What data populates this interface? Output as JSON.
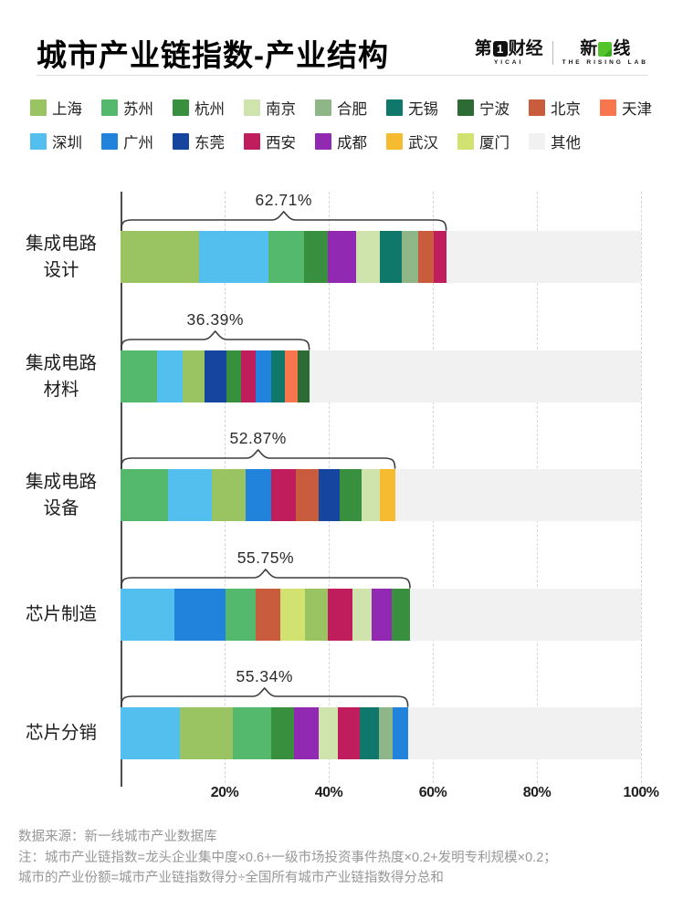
{
  "header": {
    "title": "城市产业链指数-产业结构",
    "logo": {
      "brand1_prefix": "第",
      "brand1_mark": "1",
      "brand1_suffix": "财经",
      "brand1_sub": "YICAI",
      "brand2_prefix": "新",
      "brand2_suffix": "线",
      "brand2_sub": "THE RISING LAB"
    }
  },
  "legend": {
    "row1": [
      "上海",
      "苏州",
      "杭州",
      "南京",
      "合肥",
      "无锡",
      "宁波",
      "北京",
      "天津"
    ],
    "row2": [
      "深圳",
      "广州",
      "东莞",
      "西安",
      "成都",
      "武汉",
      "厦门",
      "其他"
    ]
  },
  "chart_data": {
    "type": "bar",
    "orientation": "horizontal-stacked",
    "unit": "percent",
    "title": "城市产业链指数-产业结构",
    "x_axis": {
      "range": [
        0,
        100
      ],
      "ticks": [
        "20%",
        "40%",
        "60%",
        "80%",
        "100%"
      ],
      "tick_values": [
        20,
        40,
        60,
        80,
        100
      ],
      "gridlines": "dashed"
    },
    "colors": {
      "上海": "#9ac361",
      "苏州": "#54b96d",
      "杭州": "#38903f",
      "南京": "#cfe3ad",
      "合肥": "#8fb687",
      "无锡": "#10776b",
      "宁波": "#2c6b33",
      "北京": "#c85c3c",
      "天津": "#f8764d",
      "深圳": "#53bfee",
      "广州": "#2283dc",
      "东莞": "#15459e",
      "西安": "#c01d5c",
      "成都": "#9129b3",
      "武汉": "#f7bb31",
      "厦门": "#d2e270",
      "其他": "#f1f1f1"
    },
    "other_label": "其他",
    "rows": [
      {
        "label_lines": [
          "集成电路",
          "设计"
        ],
        "total": 62.71,
        "total_label": "62.71%",
        "segments": [
          [
            "上海",
            15.0
          ],
          [
            "深圳",
            13.5
          ],
          [
            "苏州",
            6.7
          ],
          [
            "杭州",
            4.7
          ],
          [
            "成都",
            5.3
          ],
          [
            "南京",
            4.6
          ],
          [
            "无锡",
            4.2
          ],
          [
            "合肥",
            3.2
          ],
          [
            "北京",
            3.0
          ],
          [
            "西安",
            2.5
          ]
        ]
      },
      {
        "label_lines": [
          "集成电路",
          "材料"
        ],
        "total": 36.39,
        "total_label": "36.39%",
        "segments": [
          [
            "苏州",
            7.0
          ],
          [
            "深圳",
            4.9
          ],
          [
            "上海",
            4.2
          ],
          [
            "东莞",
            4.2
          ],
          [
            "杭州",
            2.9
          ],
          [
            "西安",
            2.8
          ],
          [
            "广州",
            3.0
          ],
          [
            "无锡",
            2.5
          ],
          [
            "天津",
            2.5
          ],
          [
            "宁波",
            2.3
          ]
        ]
      },
      {
        "label_lines": [
          "集成电路",
          "设备"
        ],
        "total": 52.87,
        "total_label": "52.87%",
        "segments": [
          [
            "苏州",
            9.1
          ],
          [
            "深圳",
            8.5
          ],
          [
            "上海",
            6.4
          ],
          [
            "广州",
            5.0
          ],
          [
            "西安",
            4.7
          ],
          [
            "北京",
            4.4
          ],
          [
            "东莞",
            4.1
          ],
          [
            "杭州",
            4.1
          ],
          [
            "南京",
            3.5
          ],
          [
            "武汉",
            3.0
          ]
        ]
      },
      {
        "label_lines": [
          "芯片制造"
        ],
        "total": 55.75,
        "total_label": "55.75%",
        "segments": [
          [
            "深圳",
            10.3
          ],
          [
            "广州",
            9.9
          ],
          [
            "苏州",
            5.8
          ],
          [
            "北京",
            4.7
          ],
          [
            "厦门",
            4.7
          ],
          [
            "上海",
            4.4
          ],
          [
            "西安",
            4.7
          ],
          [
            "南京",
            3.8
          ],
          [
            "成都",
            3.8
          ],
          [
            "杭州",
            3.5
          ]
        ]
      },
      {
        "label_lines": [
          "芯片分销"
        ],
        "total": 55.34,
        "total_label": "55.34%",
        "segments": [
          [
            "深圳",
            11.4
          ],
          [
            "上海",
            10.2
          ],
          [
            "苏州",
            7.3
          ],
          [
            "杭州",
            4.4
          ],
          [
            "成都",
            4.7
          ],
          [
            "南京",
            3.8
          ],
          [
            "西安",
            4.1
          ],
          [
            "无锡",
            3.8
          ],
          [
            "合肥",
            2.6
          ],
          [
            "广州",
            2.9
          ]
        ]
      }
    ]
  },
  "footer": {
    "line1": "数据来源：新一线城市产业数据库",
    "line2": "注：城市产业链指数=龙头企业集中度×0.6+一级市场投资事件热度×0.2+发明专利规模×0.2；",
    "line3": "城市的产业份额=城市产业链指数得分÷全国所有城市产业链指数得分总和"
  }
}
